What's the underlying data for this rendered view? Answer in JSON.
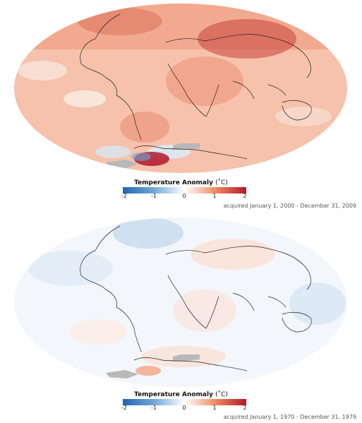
{
  "panels": [
    {
      "id": "2000s",
      "legend": {
        "title": "Temperature Anomaly",
        "unit": "(˚C)",
        "ticks": [
          "-2",
          "-1",
          "0",
          "1",
          "2"
        ],
        "colors": [
          "#2166ac",
          "#6fa8d6",
          "#ffffff",
          "#ef8a62",
          "#b2182b"
        ]
      },
      "caption": "acquired January 1, 2000 - December 31, 2009",
      "map": {
        "projection": "mollweide",
        "mean_anomaly_c": 0.6,
        "no_data_color": "#b8b8b8"
      }
    },
    {
      "id": "1970s",
      "legend": {
        "title": "Temperature Anomaly",
        "unit": "(˚C)",
        "ticks": [
          "-2",
          "-1",
          "0",
          "1",
          "2"
        ],
        "colors": [
          "#2166ac",
          "#6fa8d6",
          "#ffffff",
          "#ef8a62",
          "#b2182b"
        ]
      },
      "caption": "acquired January 1, 1970 - December 31, 1979",
      "map": {
        "projection": "mollweide",
        "mean_anomaly_c": 0.0,
        "no_data_color": "#b8b8b8"
      }
    }
  ]
}
